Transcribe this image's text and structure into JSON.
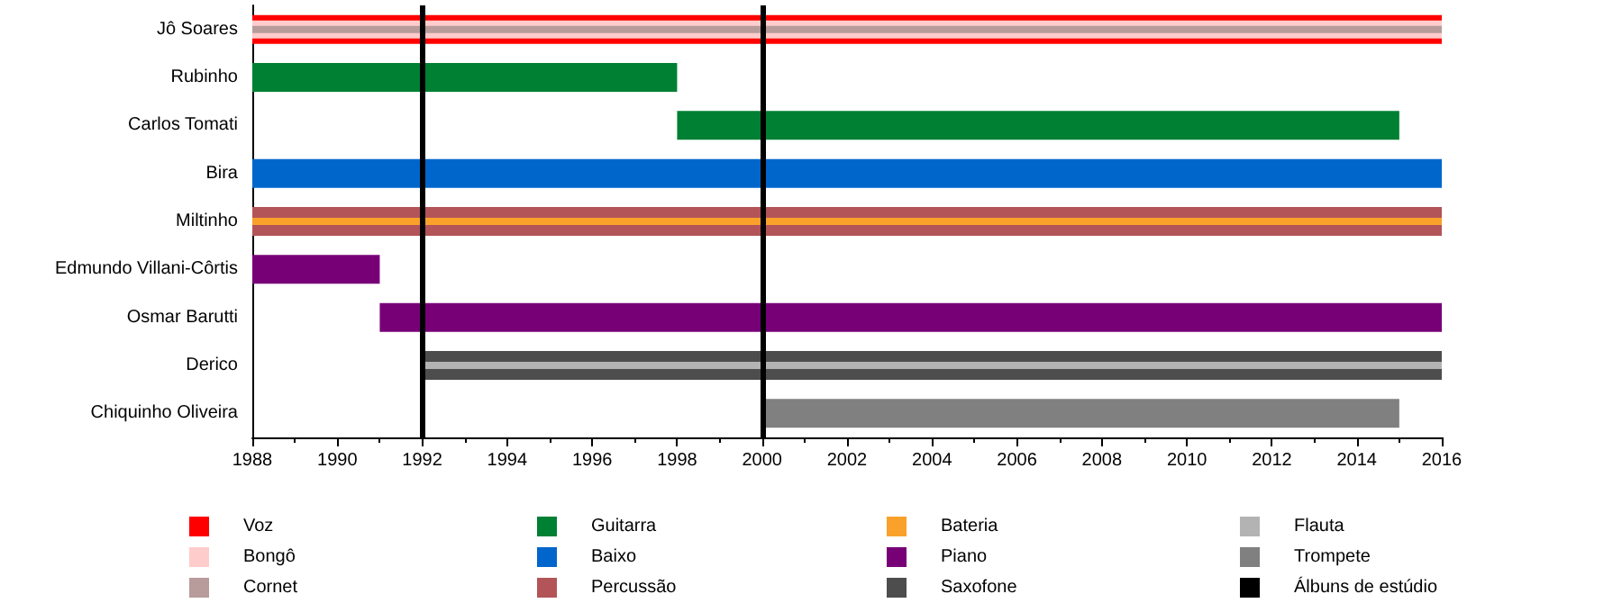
{
  "chart_data": {
    "type": "bar",
    "orientation": "horizontal",
    "categories": [
      "Jô Soares",
      "Rubinho",
      "Carlos Tomati",
      "Bira",
      "Miltinho",
      "Edmundo Villani-Côrtis",
      "Osmar Barutti",
      "Derico",
      "Chiquinho Oliveira"
    ],
    "series": [
      {
        "name": "Voz",
        "color": "#ff0000",
        "values": [
          28,
          null,
          null,
          null,
          null,
          null,
          null,
          null,
          null
        ],
        "base": [
          1988,
          null,
          null,
          null,
          null,
          null,
          null,
          null,
          null
        ]
      },
      {
        "name": "Bongô",
        "color": "#ffcccc",
        "values": [
          28,
          null,
          null,
          null,
          null,
          null,
          null,
          null,
          null
        ],
        "base": [
          1988,
          null,
          null,
          null,
          null,
          null,
          null,
          null,
          null
        ]
      },
      {
        "name": "Cornet",
        "color": "#b89b9b",
        "values": [
          28,
          null,
          null,
          null,
          null,
          null,
          null,
          null,
          null
        ],
        "base": [
          1988,
          null,
          null,
          null,
          null,
          null,
          null,
          null,
          null
        ]
      },
      {
        "name": "Guitarra",
        "color": "#008033",
        "values": [
          null,
          10,
          17,
          null,
          null,
          null,
          null,
          null,
          null
        ],
        "base": [
          null,
          1988,
          1998,
          null,
          null,
          null,
          null,
          null,
          null
        ]
      },
      {
        "name": "Baixo",
        "color": "#0066cc",
        "values": [
          null,
          null,
          null,
          28,
          null,
          null,
          null,
          null,
          null
        ],
        "base": [
          null,
          null,
          null,
          1988,
          null,
          null,
          null,
          null,
          null
        ]
      },
      {
        "name": "Percussão",
        "color": "#b35458",
        "values": [
          null,
          null,
          null,
          null,
          28,
          null,
          null,
          null,
          null
        ],
        "base": [
          null,
          null,
          null,
          null,
          1988,
          null,
          null,
          null,
          null
        ]
      },
      {
        "name": "Bateria",
        "color": "#f9a12a",
        "values": [
          null,
          null,
          null,
          null,
          28,
          null,
          null,
          null,
          null
        ],
        "base": [
          null,
          null,
          null,
          null,
          1988,
          null,
          null,
          null,
          null
        ]
      },
      {
        "name": "Piano",
        "color": "#770077",
        "values": [
          null,
          null,
          null,
          null,
          null,
          3,
          25,
          null,
          null
        ],
        "base": [
          null,
          null,
          null,
          null,
          null,
          1988,
          1991,
          null,
          null
        ]
      },
      {
        "name": "Saxofone",
        "color": "#4d4d4d",
        "values": [
          null,
          null,
          null,
          null,
          null,
          null,
          null,
          24,
          null
        ],
        "base": [
          null,
          null,
          null,
          null,
          null,
          null,
          null,
          1992,
          null
        ]
      },
      {
        "name": "Flauta",
        "color": "#b3b3b3",
        "values": [
          null,
          null,
          null,
          null,
          null,
          null,
          null,
          24,
          null
        ],
        "base": [
          null,
          null,
          null,
          null,
          null,
          null,
          null,
          1992,
          null
        ]
      },
      {
        "name": "Trompete",
        "color": "#808080",
        "values": [
          null,
          null,
          null,
          null,
          null,
          null,
          null,
          null,
          15
        ],
        "base": [
          null,
          null,
          null,
          null,
          null,
          null,
          null,
          null,
          2000
        ]
      }
    ],
    "xlim": [
      1988,
      2016
    ],
    "xticks": [
      1988,
      1990,
      1992,
      1994,
      1996,
      1998,
      2000,
      2002,
      2004,
      2006,
      2008,
      2010,
      2012,
      2014,
      2016
    ],
    "ref_lines": [
      {
        "axis": "x",
        "value": 1992,
        "label": "Álbuns de estúdio",
        "color": "#000000"
      },
      {
        "axis": "x",
        "value": 2000,
        "label": null,
        "color": "#000000"
      }
    ],
    "grid": false,
    "legend": "bottom"
  }
}
